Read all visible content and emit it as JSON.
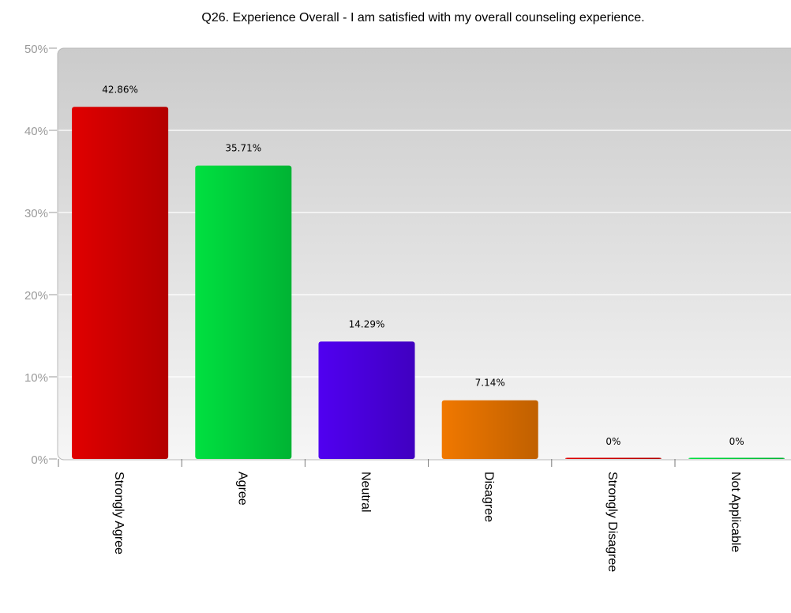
{
  "chart_data": {
    "type": "bar",
    "title": "Q26. Experience Overall - I am satisfied with my overall counseling experience.",
    "categories": [
      "Strongly Agree",
      "Agree",
      "Neutral",
      "Disagree",
      "Strongly Disagree",
      "Not Applicable"
    ],
    "values": [
      42.86,
      35.71,
      14.29,
      7.14,
      0,
      0
    ],
    "data_labels": [
      "42.86%",
      "35.71%",
      "14.29%",
      "7.14%",
      "0%",
      "0%"
    ],
    "colors": [
      "#e00000",
      "#00e040",
      "#5000f0",
      "#f07800",
      "#e00000",
      "#00e040"
    ],
    "ylim": [
      0,
      50
    ],
    "yticks": [
      0,
      10,
      20,
      30,
      40,
      50
    ],
    "ytick_labels": [
      "0%",
      "10%",
      "20%",
      "30%",
      "40%",
      "50%"
    ],
    "grid": true
  }
}
